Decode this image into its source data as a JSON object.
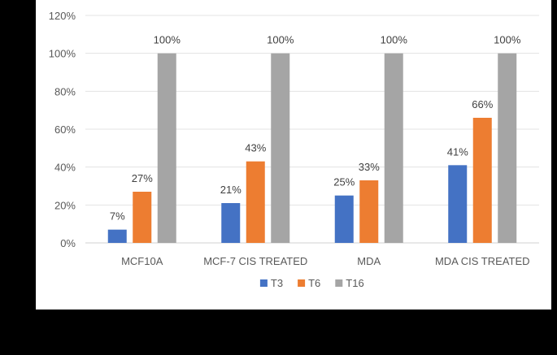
{
  "chart_data": {
    "type": "bar",
    "title": "",
    "xlabel": "",
    "ylabel": "",
    "categories": [
      "MCF10A",
      "MCF-7 CIS TREATED",
      "MDA",
      "MDA CIS TREATED"
    ],
    "series": [
      {
        "name": "T3",
        "values": [
          7,
          21,
          25,
          41
        ],
        "labels": [
          "7%",
          "21%",
          "25%",
          "41%"
        ],
        "color": "#4472C4"
      },
      {
        "name": "T6",
        "values": [
          27,
          43,
          33,
          66
        ],
        "labels": [
          "27%",
          "43%",
          "33%",
          "66%"
        ],
        "color": "#ED7D31"
      },
      {
        "name": "T16",
        "values": [
          100,
          100,
          100,
          100
        ],
        "labels": [
          "100%",
          "100%",
          "100%",
          "100%"
        ],
        "color": "#A5A5A5"
      }
    ],
    "ylim": [
      0,
      120
    ],
    "yticks": [
      0,
      20,
      40,
      60,
      80,
      100,
      120
    ],
    "ytick_labels": [
      "0%",
      "20%",
      "40%",
      "60%",
      "80%",
      "100%",
      "120%"
    ],
    "grid": true,
    "legend_position": "bottom"
  }
}
